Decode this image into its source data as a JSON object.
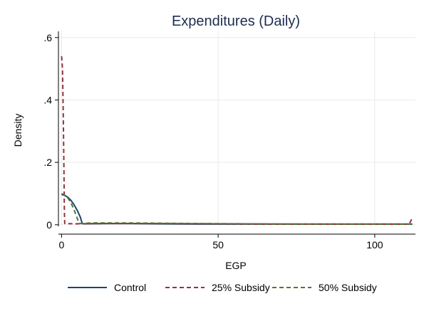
{
  "chart_data": {
    "type": "line",
    "title": "Expenditures (Daily)",
    "xlabel": "EGP",
    "ylabel": "Density",
    "xlim": [
      -1,
      113
    ],
    "ylim": [
      -0.005,
      0.62
    ],
    "x_ticks": [
      {
        "value": 0,
        "label": "0"
      },
      {
        "value": 50,
        "label": "50"
      },
      {
        "value": 100,
        "label": "100"
      }
    ],
    "y_ticks": [
      {
        "value": 0,
        "label": "0"
      },
      {
        "value": 0.2,
        "label": ".2"
      },
      {
        "value": 0.4,
        "label": ".4"
      },
      {
        "value": 0.6,
        "label": ".6"
      }
    ],
    "grid": true,
    "legend_position": "bottom",
    "series": [
      {
        "name": "Control",
        "color": "#1a476f",
        "dash": "solid",
        "points": [
          [
            0,
            0.097
          ],
          [
            1,
            0.094
          ],
          [
            2,
            0.088
          ],
          [
            3,
            0.078
          ],
          [
            4,
            0.064
          ],
          [
            5,
            0.046
          ],
          [
            6,
            0.024
          ],
          [
            6.6,
            0.004
          ],
          [
            7,
            0.003
          ],
          [
            15,
            0.004
          ],
          [
            22,
            0.004
          ],
          [
            30,
            0.003
          ],
          [
            45,
            0.002
          ],
          [
            60,
            0.002
          ],
          [
            80,
            0.002
          ],
          [
            100,
            0.002
          ],
          [
            112,
            0.002
          ]
        ]
      },
      {
        "name": "25% Subsidy",
        "color": "#90353b",
        "dash": "6,4",
        "points": [
          [
            0,
            0.54
          ],
          [
            0.3,
            0.5
          ],
          [
            0.55,
            0.35
          ],
          [
            0.75,
            0.18
          ],
          [
            0.9,
            0.05
          ],
          [
            1.0,
            0.004
          ],
          [
            4,
            0.003
          ],
          [
            15,
            0.004
          ],
          [
            30,
            0.004
          ],
          [
            50,
            0.003
          ],
          [
            70,
            0.002
          ],
          [
            90,
            0.002
          ],
          [
            105,
            0.002
          ],
          [
            111,
            0.002
          ],
          [
            112,
            0.022
          ]
        ]
      },
      {
        "name": "50% Subsidy",
        "color": "#55752f",
        "dash": "6,4",
        "points": [
          [
            0,
            0.1
          ],
          [
            1,
            0.095
          ],
          [
            2,
            0.086
          ],
          [
            3,
            0.07
          ],
          [
            4,
            0.048
          ],
          [
            5,
            0.02
          ],
          [
            5.6,
            0.005
          ],
          [
            6,
            0.004
          ],
          [
            10,
            0.006
          ],
          [
            20,
            0.006
          ],
          [
            30,
            0.005
          ],
          [
            45,
            0.004
          ],
          [
            60,
            0.003
          ],
          [
            80,
            0.002
          ],
          [
            100,
            0.002
          ],
          [
            112,
            0.002
          ]
        ]
      }
    ]
  }
}
